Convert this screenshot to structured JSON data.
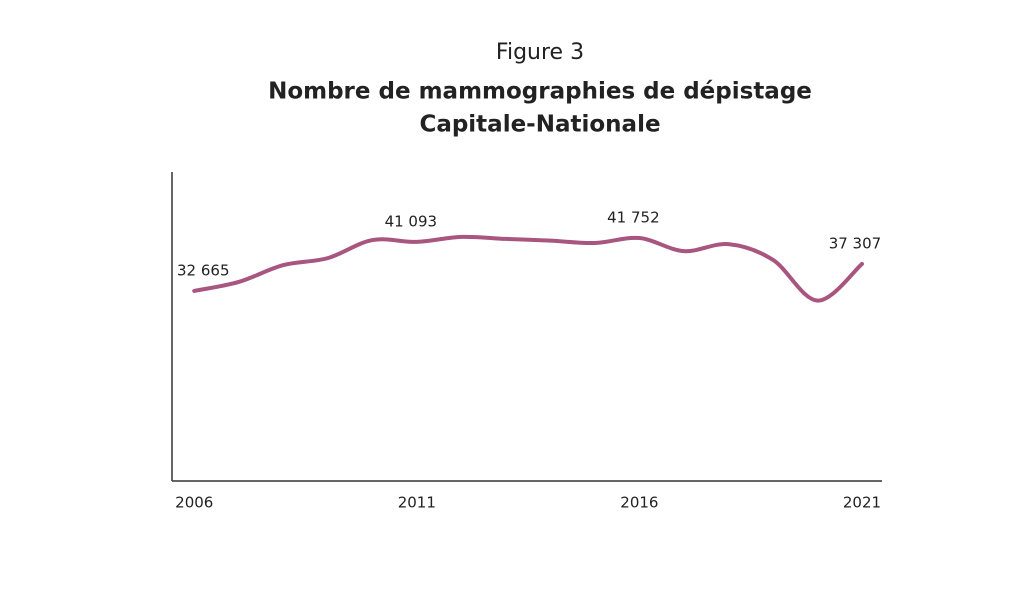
{
  "chart_data": {
    "type": "line",
    "figure_label": "Figure 3",
    "title": "Nombre de mammographies de dépistage",
    "subtitle": "Capitale-Nationale",
    "x": [
      2006,
      2007,
      2008,
      2009,
      2010,
      2011,
      2012,
      2013,
      2014,
      2015,
      2016,
      2017,
      2018,
      2019,
      2020,
      2021
    ],
    "series": [
      {
        "name": "Capitale-Nationale",
        "color": "#a8557f",
        "values": [
          32665,
          34200,
          37100,
          38300,
          41400,
          41093,
          41950,
          41600,
          41300,
          40900,
          41752,
          39500,
          40700,
          38000,
          31000,
          37307
        ],
        "value_labels": [
          "32 665",
          null,
          null,
          null,
          null,
          "41 093",
          null,
          null,
          null,
          null,
          "41 752",
          null,
          null,
          null,
          null,
          "37 307"
        ]
      }
    ],
    "xlim": [
      2005.5,
      2021.45
    ],
    "xticks": [
      2006,
      2011,
      2016,
      2021
    ],
    "ylim": [
      0,
      53100
    ]
  }
}
